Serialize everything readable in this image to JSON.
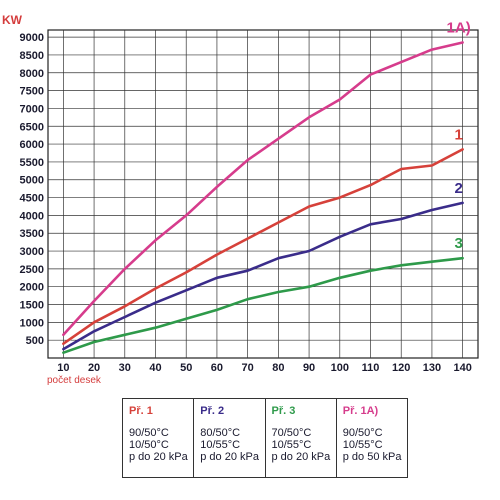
{
  "chart_data": {
    "type": "line",
    "title": "",
    "ylabel": "KW",
    "xlabel": "počet desek",
    "xlim": [
      5,
      145
    ],
    "ylim": [
      0,
      9200
    ],
    "x_ticks": [
      10,
      20,
      30,
      40,
      50,
      60,
      70,
      80,
      90,
      100,
      110,
      120,
      130,
      140
    ],
    "y_ticks": [
      500,
      1000,
      1500,
      2000,
      2500,
      3000,
      3500,
      4000,
      4500,
      5000,
      5500,
      6000,
      6500,
      7000,
      7500,
      8000,
      8500,
      9000
    ],
    "grid": true,
    "series": [
      {
        "name": "1A)",
        "color": "#d63c8c",
        "x": [
          10,
          20,
          30,
          40,
          50,
          60,
          70,
          80,
          90,
          100,
          110,
          120,
          130,
          140
        ],
        "values": [
          650,
          1600,
          2500,
          3300,
          4000,
          4800,
          5550,
          6150,
          6750,
          7250,
          7950,
          8300,
          8650,
          8850
        ]
      },
      {
        "name": "1",
        "color": "#d6413a",
        "x": [
          10,
          20,
          30,
          40,
          50,
          60,
          70,
          80,
          90,
          100,
          110,
          120,
          130,
          140
        ],
        "values": [
          400,
          1000,
          1450,
          1950,
          2400,
          2900,
          3350,
          3800,
          4250,
          4500,
          4850,
          5300,
          5400,
          5850
        ]
      },
      {
        "name": "2",
        "color": "#3a2c8a",
        "x": [
          10,
          20,
          30,
          40,
          50,
          60,
          70,
          80,
          90,
          100,
          110,
          120,
          130,
          140
        ],
        "values": [
          250,
          750,
          1150,
          1550,
          1900,
          2250,
          2450,
          2800,
          3000,
          3400,
          3750,
          3900,
          4150,
          4350
        ]
      },
      {
        "name": "3",
        "color": "#2e9a4a",
        "x": [
          10,
          20,
          30,
          40,
          50,
          60,
          70,
          80,
          90,
          100,
          110,
          120,
          130,
          140
        ],
        "values": [
          150,
          450,
          650,
          850,
          1100,
          1350,
          1650,
          1850,
          2000,
          2250,
          2450,
          2600,
          2700,
          2800
        ]
      }
    ]
  },
  "legend": [
    {
      "title": "Př. 1",
      "color": "#d6413a",
      "lines": [
        "90/50°C",
        "10/50°C",
        "p do 20 kPa"
      ]
    },
    {
      "title": "Př. 2",
      "color": "#3a2c8a",
      "lines": [
        "80/50°C",
        "10/55°C",
        "p do 20 kPa"
      ]
    },
    {
      "title": "Př. 3",
      "color": "#2e9a4a",
      "lines": [
        "70/50°C",
        "10/55°C",
        "p do 20 kPa"
      ]
    },
    {
      "title": "Př. 1A)",
      "color": "#d63c8c",
      "lines": [
        "90/50°C",
        "10/55°C",
        "p do 50 kPa"
      ]
    }
  ]
}
